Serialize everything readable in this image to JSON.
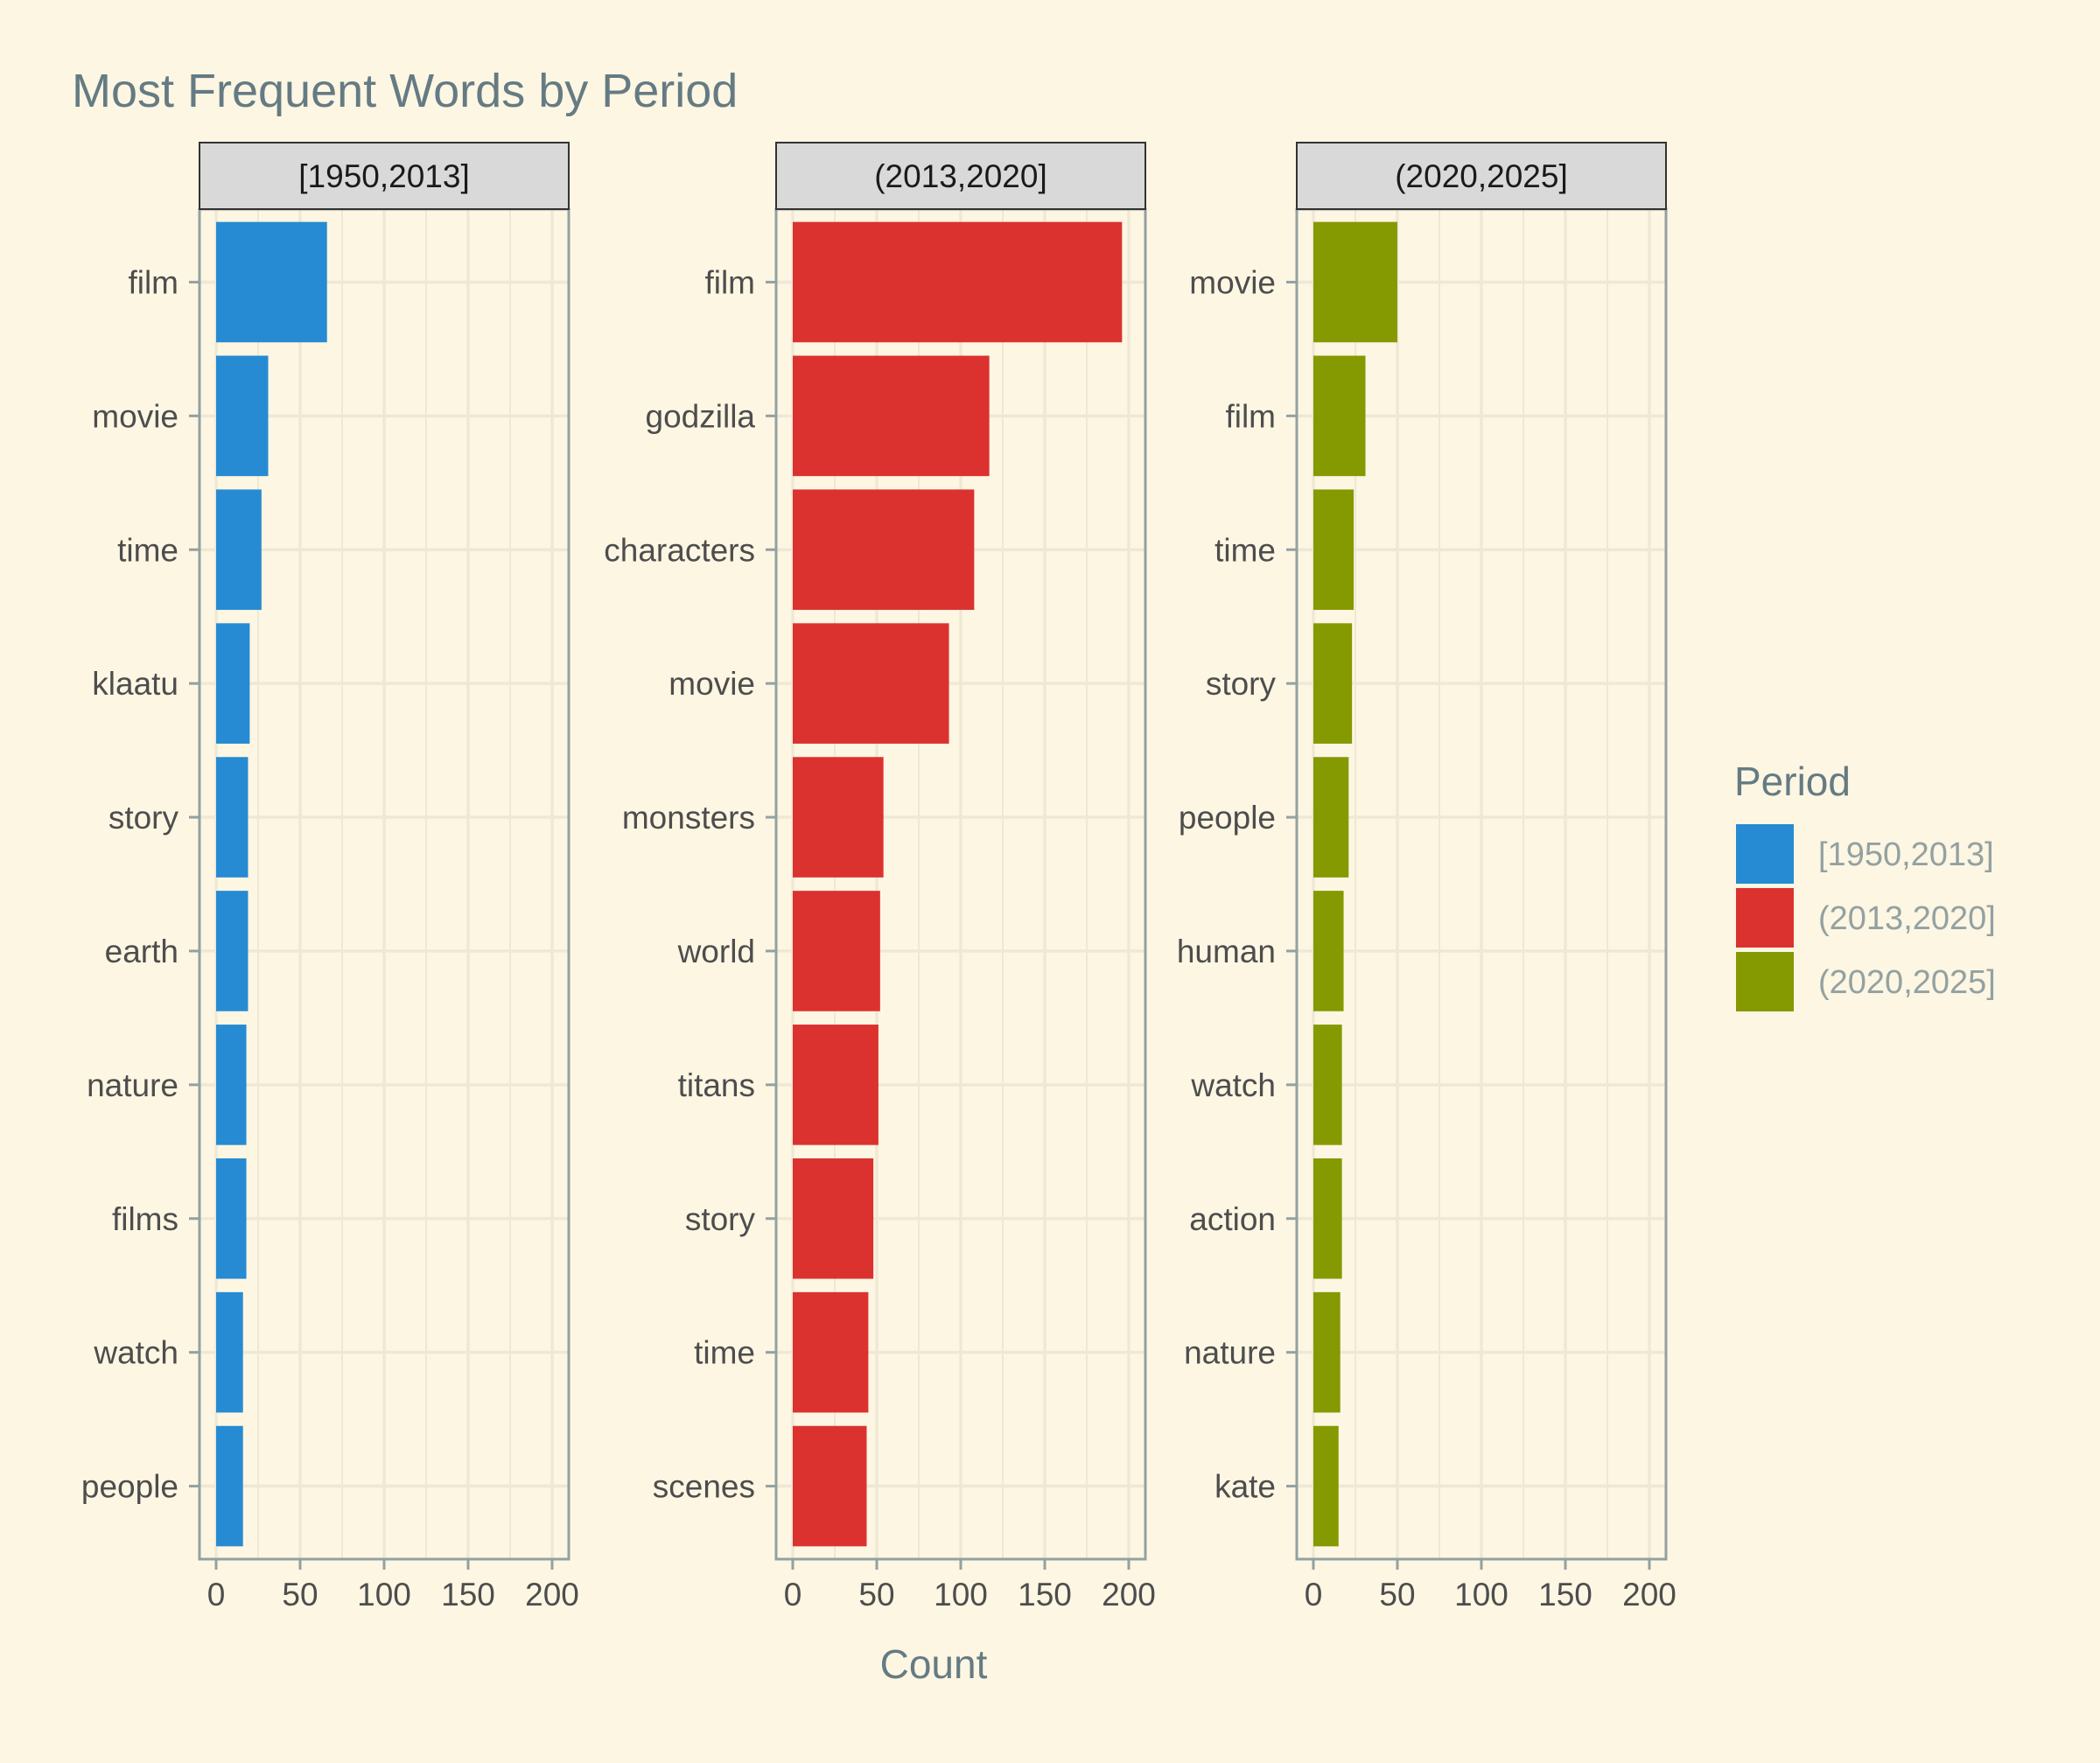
{
  "title": "Most Frequent Words by Period",
  "colors": {
    "background": "#fdf6e3",
    "panel_border": "#93a1a1",
    "grid": "#eee8d5",
    "strip_fill": "#d9d9d9",
    "title": "#657b83",
    "axis_text": "#4d4d4d",
    "legend_text": "#93a1a1"
  },
  "chart_data": {
    "type": "bar",
    "orientation": "horizontal",
    "facet_by": "Period",
    "xlabel": "Count",
    "ylabel": "",
    "xlim": [
      0,
      200
    ],
    "xticks": [
      0,
      50,
      100,
      150,
      200
    ],
    "grid": true,
    "legend": {
      "title": "Period",
      "position": "right",
      "entries": [
        {
          "label": "[1950,2013]",
          "color": "#268bd2"
        },
        {
          "label": "(2013,2020]",
          "color": "#dc322f"
        },
        {
          "label": "(2020,2025]",
          "color": "#859900"
        }
      ]
    },
    "panels": [
      {
        "name": "[1950,2013]",
        "color": "#268bd2",
        "categories": [
          "film",
          "movie",
          "time",
          "klaatu",
          "story",
          "earth",
          "nature",
          "films",
          "watch",
          "people"
        ],
        "values": [
          66,
          31,
          27,
          20,
          19,
          19,
          18,
          18,
          16,
          16
        ]
      },
      {
        "name": "(2013,2020]",
        "color": "#dc322f",
        "categories": [
          "film",
          "godzilla",
          "characters",
          "movie",
          "monsters",
          "world",
          "titans",
          "story",
          "time",
          "scenes"
        ],
        "values": [
          196,
          117,
          108,
          93,
          54,
          52,
          51,
          48,
          45,
          44
        ]
      },
      {
        "name": "(2020,2025]",
        "color": "#859900",
        "categories": [
          "movie",
          "film",
          "time",
          "story",
          "people",
          "human",
          "watch",
          "action",
          "nature",
          "kate"
        ],
        "values": [
          50,
          31,
          24,
          23,
          21,
          18,
          17,
          17,
          16,
          15
        ]
      }
    ]
  }
}
